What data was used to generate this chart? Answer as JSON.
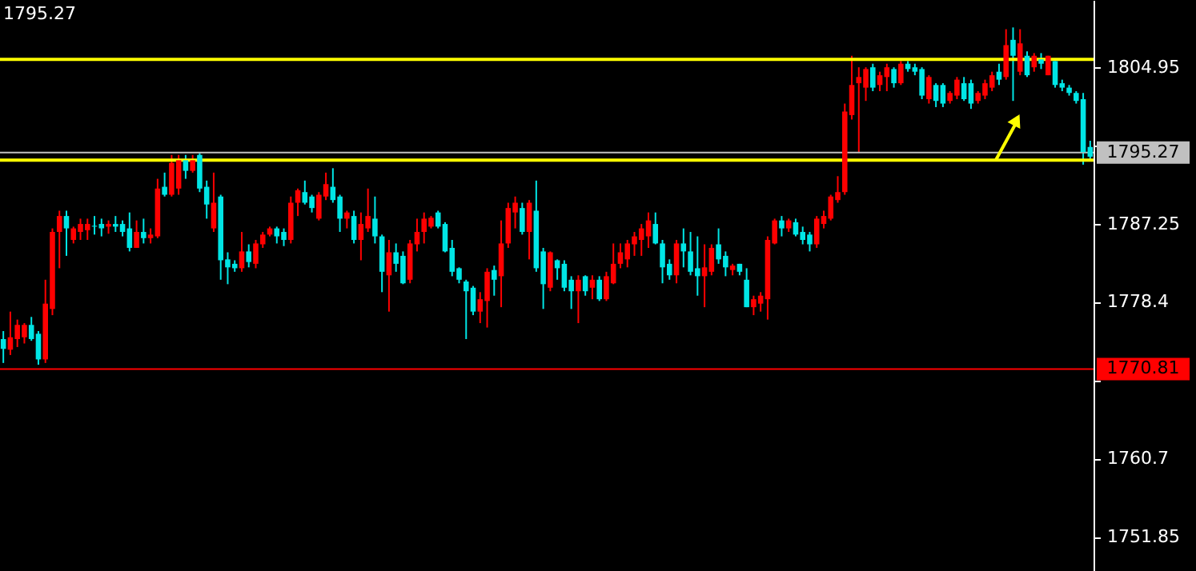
{
  "chart_data": {
    "type": "candlestick",
    "title": "1795.27",
    "categories": [
      null,
      null,
      null,
      null,
      null,
      null,
      null,
      null,
      null,
      null,
      null,
      null,
      null,
      null,
      null,
      null,
      null,
      null,
      null,
      null,
      null,
      null,
      null,
      null,
      null,
      null,
      null,
      null,
      null,
      null,
      null,
      null,
      null,
      null,
      null,
      null,
      null,
      null,
      null,
      null,
      null,
      null,
      null,
      null,
      null,
      null,
      null,
      null,
      null,
      null,
      null,
      null,
      null,
      null,
      null,
      null,
      null,
      null,
      null,
      null,
      null,
      null,
      null,
      null,
      null,
      null,
      null,
      null,
      null,
      null,
      null,
      null,
      null,
      null,
      null,
      null,
      null,
      null,
      null,
      null,
      null,
      null,
      null,
      null,
      null,
      null,
      null,
      null,
      null,
      null,
      null,
      null,
      null,
      null,
      null,
      null,
      null,
      null,
      null,
      null,
      null,
      null,
      null,
      null,
      null,
      null,
      null,
      null,
      null,
      null,
      null,
      null,
      null,
      null,
      null,
      null,
      null,
      null,
      null,
      null,
      null,
      null,
      null,
      null,
      null,
      null,
      null,
      null,
      null,
      null,
      null,
      null,
      null,
      null,
      null,
      null,
      null,
      null,
      null,
      null,
      null,
      null,
      null,
      null,
      null,
      null,
      null,
      null,
      null,
      null,
      null,
      null,
      null,
      null,
      null,
      null
    ],
    "ohlc": [
      [
        1774.2,
        1775.1,
        1771.5,
        1773.1
      ],
      [
        1773.0,
        1777.3,
        1772.4,
        1774.4
      ],
      [
        1774.2,
        1776.4,
        1773.3,
        1775.8
      ],
      [
        1774.4,
        1776.0,
        1773.7,
        1775.8
      ],
      [
        1775.8,
        1776.7,
        1774.0,
        1774.2
      ],
      [
        1774.8,
        1775.1,
        1771.3,
        1771.9
      ],
      [
        1771.9,
        1780.9,
        1771.5,
        1778.2
      ],
      [
        1777.6,
        1786.7,
        1776.9,
        1786.3
      ],
      [
        1786.3,
        1788.7,
        1782.2,
        1788.1
      ],
      [
        1788.1,
        1788.7,
        1783.6,
        1786.7
      ],
      [
        1785.4,
        1786.9,
        1785.0,
        1786.7
      ],
      [
        1786.3,
        1787.8,
        1785.4,
        1787.2
      ],
      [
        1786.5,
        1787.8,
        1785.4,
        1787.2
      ],
      [
        1787.0,
        1788.1,
        1786.0,
        1786.9
      ],
      [
        1787.2,
        1787.8,
        1785.8,
        1786.7
      ],
      [
        1786.9,
        1787.6,
        1786.1,
        1787.2
      ],
      [
        1787.2,
        1788.1,
        1786.3,
        1786.9
      ],
      [
        1787.2,
        1787.6,
        1785.8,
        1786.3
      ],
      [
        1786.7,
        1788.5,
        1784.1,
        1784.5
      ],
      [
        1784.5,
        1787.6,
        1784.5,
        1786.3
      ],
      [
        1786.3,
        1787.8,
        1785.0,
        1785.6
      ],
      [
        1785.6,
        1786.7,
        1785.0,
        1786.0
      ],
      [
        1785.8,
        1792.3,
        1785.6,
        1791.2
      ],
      [
        1791.4,
        1793.0,
        1790.3,
        1790.5
      ],
      [
        1790.5,
        1795.0,
        1790.3,
        1794.1
      ],
      [
        1791.2,
        1795.0,
        1790.5,
        1794.4
      ],
      [
        1794.4,
        1795.0,
        1792.3,
        1793.2
      ],
      [
        1793.2,
        1795.0,
        1793.0,
        1794.4
      ],
      [
        1795.0,
        1795.2,
        1790.8,
        1791.2
      ],
      [
        1791.4,
        1792.1,
        1787.8,
        1789.4
      ],
      [
        1786.7,
        1793.0,
        1786.3,
        1789.6
      ],
      [
        1790.3,
        1790.5,
        1780.9,
        1783.1
      ],
      [
        1783.2,
        1784.0,
        1780.4,
        1782.3
      ],
      [
        1782.7,
        1783.1,
        1781.8,
        1782.2
      ],
      [
        1782.2,
        1786.3,
        1781.8,
        1784.1
      ],
      [
        1784.1,
        1784.9,
        1782.3,
        1782.9
      ],
      [
        1782.7,
        1785.4,
        1782.2,
        1785.0
      ],
      [
        1784.9,
        1786.3,
        1784.5,
        1786.0
      ],
      [
        1786.0,
        1786.9,
        1785.8,
        1786.7
      ],
      [
        1786.7,
        1786.9,
        1785.0,
        1785.8
      ],
      [
        1786.3,
        1786.7,
        1784.7,
        1785.4
      ],
      [
        1785.4,
        1790.3,
        1785.0,
        1789.6
      ],
      [
        1789.6,
        1791.2,
        1788.1,
        1791.0
      ],
      [
        1790.8,
        1792.1,
        1789.4,
        1789.6
      ],
      [
        1790.3,
        1790.5,
        1788.5,
        1789.0
      ],
      [
        1787.8,
        1790.8,
        1787.6,
        1790.5
      ],
      [
        1790.3,
        1793.0,
        1789.9,
        1791.7
      ],
      [
        1791.4,
        1793.5,
        1789.6,
        1789.9
      ],
      [
        1790.3,
        1790.5,
        1786.3,
        1787.8
      ],
      [
        1787.8,
        1788.7,
        1786.7,
        1788.5
      ],
      [
        1788.1,
        1788.7,
        1785.0,
        1785.4
      ],
      [
        1785.4,
        1788.5,
        1783.1,
        1787.2
      ],
      [
        1786.7,
        1791.2,
        1786.3,
        1788.1
      ],
      [
        1787.8,
        1790.3,
        1785.0,
        1785.8
      ],
      [
        1785.8,
        1786.0,
        1779.5,
        1781.8
      ],
      [
        1781.4,
        1785.4,
        1777.3,
        1784.0
      ],
      [
        1784.0,
        1785.0,
        1781.8,
        1782.7
      ],
      [
        1783.6,
        1784.1,
        1780.4,
        1780.5
      ],
      [
        1780.9,
        1785.4,
        1780.5,
        1785.0
      ],
      [
        1784.9,
        1787.8,
        1784.1,
        1786.3
      ],
      [
        1786.3,
        1788.5,
        1785.0,
        1787.8
      ],
      [
        1786.9,
        1788.1,
        1786.7,
        1787.9
      ],
      [
        1788.5,
        1788.7,
        1786.7,
        1786.9
      ],
      [
        1787.2,
        1787.4,
        1784.0,
        1784.1
      ],
      [
        1784.5,
        1785.4,
        1781.3,
        1781.8
      ],
      [
        1782.2,
        1782.3,
        1780.5,
        1780.9
      ],
      [
        1780.7,
        1780.9,
        1774.2,
        1779.6
      ],
      [
        1780.0,
        1780.2,
        1776.9,
        1777.3
      ],
      [
        1777.3,
        1779.5,
        1776.0,
        1778.7
      ],
      [
        1778.5,
        1782.2,
        1775.5,
        1781.8
      ],
      [
        1782.0,
        1782.5,
        1779.1,
        1780.9
      ],
      [
        1781.3,
        1787.6,
        1777.8,
        1785.0
      ],
      [
        1785.0,
        1789.6,
        1784.5,
        1789.0
      ],
      [
        1788.5,
        1790.3,
        1786.7,
        1789.6
      ],
      [
        1789.0,
        1789.6,
        1786.0,
        1786.3
      ],
      [
        1786.3,
        1789.9,
        1783.2,
        1789.6
      ],
      [
        1788.7,
        1792.1,
        1781.8,
        1782.2
      ],
      [
        1784.1,
        1784.5,
        1777.6,
        1780.4
      ],
      [
        1780.0,
        1784.1,
        1779.6,
        1784.0
      ],
      [
        1783.1,
        1783.2,
        1780.9,
        1782.2
      ],
      [
        1782.7,
        1783.1,
        1779.6,
        1780.0
      ],
      [
        1780.9,
        1781.3,
        1777.6,
        1779.6
      ],
      [
        1779.6,
        1781.4,
        1776.0,
        1780.9
      ],
      [
        1781.3,
        1781.4,
        1779.1,
        1779.6
      ],
      [
        1780.0,
        1781.4,
        1778.7,
        1780.9
      ],
      [
        1780.9,
        1781.3,
        1778.5,
        1778.7
      ],
      [
        1778.7,
        1781.8,
        1778.5,
        1781.3
      ],
      [
        1780.5,
        1785.0,
        1780.4,
        1782.7
      ],
      [
        1782.7,
        1785.0,
        1782.2,
        1784.0
      ],
      [
        1783.2,
        1785.4,
        1782.3,
        1785.0
      ],
      [
        1784.9,
        1786.3,
        1783.6,
        1785.8
      ],
      [
        1785.4,
        1787.2,
        1783.6,
        1786.7
      ],
      [
        1785.8,
        1788.5,
        1784.5,
        1787.6
      ],
      [
        1787.2,
        1788.5,
        1784.9,
        1785.0
      ],
      [
        1785.0,
        1785.4,
        1780.5,
        1782.3
      ],
      [
        1782.7,
        1783.2,
        1780.9,
        1781.4
      ],
      [
        1781.4,
        1785.4,
        1780.5,
        1785.0
      ],
      [
        1785.0,
        1786.7,
        1782.3,
        1784.1
      ],
      [
        1784.1,
        1786.3,
        1781.4,
        1781.8
      ],
      [
        1782.2,
        1785.8,
        1779.1,
        1781.3
      ],
      [
        1781.3,
        1784.9,
        1777.8,
        1782.3
      ],
      [
        1781.8,
        1784.9,
        1781.4,
        1784.5
      ],
      [
        1784.9,
        1786.7,
        1782.7,
        1783.2
      ],
      [
        1783.6,
        1784.1,
        1781.3,
        1782.3
      ],
      [
        1782.0,
        1782.7,
        1781.4,
        1782.5
      ],
      [
        1782.7,
        1782.7,
        1781.4,
        1781.8
      ],
      [
        1780.9,
        1782.2,
        1777.8,
        1777.8
      ],
      [
        1777.8,
        1779.1,
        1776.9,
        1778.7
      ],
      [
        1778.2,
        1779.5,
        1777.3,
        1779.1
      ],
      [
        1778.7,
        1785.8,
        1776.4,
        1785.4
      ],
      [
        1785.0,
        1787.8,
        1784.9,
        1787.6
      ],
      [
        1787.6,
        1788.1,
        1785.8,
        1786.7
      ],
      [
        1786.7,
        1787.8,
        1786.3,
        1787.6
      ],
      [
        1787.4,
        1787.8,
        1785.8,
        1786.0
      ],
      [
        1786.3,
        1786.9,
        1784.9,
        1785.4
      ],
      [
        1786.0,
        1786.3,
        1784.1,
        1784.9
      ],
      [
        1784.9,
        1788.1,
        1784.5,
        1787.8
      ],
      [
        1787.2,
        1788.7,
        1786.7,
        1788.1
      ],
      [
        1787.8,
        1790.5,
        1787.6,
        1790.3
      ],
      [
        1789.9,
        1792.6,
        1789.6,
        1790.8
      ],
      [
        1790.8,
        1800.8,
        1790.5,
        1799.9
      ],
      [
        1799.5,
        1806.2,
        1799.0,
        1802.9
      ],
      [
        1803.1,
        1804.9,
        1795.3,
        1803.8
      ],
      [
        1802.6,
        1804.9,
        1801.1,
        1804.7
      ],
      [
        1804.9,
        1805.3,
        1802.2,
        1802.6
      ],
      [
        1802.9,
        1804.4,
        1802.2,
        1804.0
      ],
      [
        1803.8,
        1805.3,
        1802.2,
        1804.9
      ],
      [
        1804.7,
        1804.9,
        1802.6,
        1803.1
      ],
      [
        1803.1,
        1805.6,
        1802.9,
        1805.3
      ],
      [
        1805.3,
        1805.6,
        1804.4,
        1804.7
      ],
      [
        1804.9,
        1805.3,
        1804.0,
        1804.4
      ],
      [
        1804.7,
        1804.9,
        1801.3,
        1801.7
      ],
      [
        1801.3,
        1804.0,
        1800.8,
        1803.8
      ],
      [
        1802.9,
        1803.1,
        1800.4,
        1801.1
      ],
      [
        1802.9,
        1803.1,
        1800.4,
        1800.8
      ],
      [
        1801.1,
        1802.2,
        1800.8,
        1802.0
      ],
      [
        1801.7,
        1803.8,
        1801.3,
        1803.5
      ],
      [
        1803.1,
        1803.8,
        1801.1,
        1801.3
      ],
      [
        1803.1,
        1803.5,
        1800.2,
        1800.8
      ],
      [
        1801.1,
        1802.2,
        1800.8,
        1802.0
      ],
      [
        1801.7,
        1803.5,
        1801.3,
        1803.1
      ],
      [
        1802.6,
        1804.4,
        1802.2,
        1804.0
      ],
      [
        1804.4,
        1805.3,
        1802.9,
        1803.5
      ],
      [
        1803.8,
        1809.2,
        1803.5,
        1807.4
      ],
      [
        1808.0,
        1809.4,
        1801.1,
        1806.2
      ],
      [
        1804.4,
        1809.2,
        1804.0,
        1807.6
      ],
      [
        1806.2,
        1806.7,
        1803.8,
        1804.0
      ],
      [
        1804.9,
        1806.5,
        1804.4,
        1806.2
      ],
      [
        1805.8,
        1806.5,
        1804.7,
        1805.3
      ],
      [
        1804.0,
        1806.2,
        1804.0,
        1806.2
      ],
      [
        1805.6,
        1805.6,
        1802.6,
        1802.9
      ],
      [
        1803.1,
        1803.5,
        1802.2,
        1802.6
      ],
      [
        1802.6,
        1802.9,
        1801.7,
        1802.0
      ],
      [
        1802.0,
        1802.2,
        1800.8,
        1801.1
      ],
      [
        1801.3,
        1802.0,
        1793.9,
        1795.3
      ],
      [
        1795.9,
        1796.6,
        1794.4,
        1794.8
      ]
    ],
    "colors": [
      "#00e5e5",
      "#ff0000",
      "#ff0000",
      "#ff0000",
      "#00e5e5",
      "#00e5e5",
      "#ff0000",
      "#ff0000",
      "#ff0000",
      "#00e5e5",
      "#ff0000",
      "#ff0000",
      "#ff0000",
      "#00e5e5",
      "#00e5e5",
      "#ff0000",
      "#00e5e5",
      "#00e5e5",
      "#00e5e5",
      "#ff0000",
      "#00e5e5",
      "#ff0000",
      "#ff0000",
      "#00e5e5",
      "#ff0000",
      "#ff0000",
      "#00e5e5",
      "#ff0000",
      "#00e5e5",
      "#00e5e5",
      "#ff0000",
      "#00e5e5",
      "#00e5e5",
      "#00e5e5",
      "#ff0000",
      "#00e5e5",
      "#ff0000",
      "#ff0000",
      "#ff0000",
      "#00e5e5",
      "#00e5e5",
      "#ff0000",
      "#ff0000",
      "#00e5e5",
      "#00e5e5",
      "#ff0000",
      "#ff0000",
      "#00e5e5",
      "#00e5e5",
      "#ff0000",
      "#00e5e5",
      "#ff0000",
      "#ff0000",
      "#00e5e5",
      "#00e5e5",
      "#ff0000",
      "#00e5e5",
      "#00e5e5",
      "#ff0000",
      "#ff0000",
      "#ff0000",
      "#ff0000",
      "#00e5e5",
      "#00e5e5",
      "#00e5e5",
      "#00e5e5",
      "#00e5e5",
      "#00e5e5",
      "#ff0000",
      "#ff0000",
      "#00e5e5",
      "#ff0000",
      "#ff0000",
      "#ff0000",
      "#00e5e5",
      "#ff0000",
      "#00e5e5",
      "#00e5e5",
      "#ff0000",
      "#00e5e5",
      "#00e5e5",
      "#00e5e5",
      "#ff0000",
      "#00e5e5",
      "#ff0000",
      "#00e5e5",
      "#ff0000",
      "#ff0000",
      "#ff0000",
      "#ff0000",
      "#ff0000",
      "#ff0000",
      "#ff0000",
      "#00e5e5",
      "#00e5e5",
      "#00e5e5",
      "#ff0000",
      "#00e5e5",
      "#00e5e5",
      "#00e5e5",
      "#ff0000",
      "#ff0000",
      "#00e5e5",
      "#00e5e5",
      "#ff0000",
      "#00e5e5",
      "#00e5e5",
      "#ff0000",
      "#ff0000",
      "#ff0000",
      "#ff0000",
      "#00e5e5",
      "#ff0000",
      "#00e5e5",
      "#00e5e5",
      "#00e5e5",
      "#ff0000",
      "#ff0000",
      "#ff0000",
      "#ff0000",
      "#ff0000",
      "#ff0000",
      "#ff0000",
      "#ff0000",
      "#00e5e5",
      "#ff0000",
      "#ff0000",
      "#00e5e5",
      "#ff0000",
      "#00e5e5",
      "#00e5e5",
      "#00e5e5",
      "#ff0000",
      "#00e5e5",
      "#00e5e5",
      "#ff0000",
      "#ff0000",
      "#00e5e5",
      "#00e5e5",
      "#ff0000",
      "#ff0000",
      "#ff0000",
      "#00e5e5",
      "#ff0000",
      "#00e5e5",
      "#ff0000",
      "#00e5e5",
      "#ff0000",
      "#00e5e5",
      "#ff0000",
      "#00e5e5",
      "#00e5e5",
      "#00e5e5",
      "#00e5e5",
      "#00e5e5",
      "#00e5e5"
    ],
    "ylim": [
      1748.0,
      1812.5
    ],
    "yticks": [
      1804.95,
      {
        "value": 1796.1,
        "label": null
      },
      1787.25,
      1778.4,
      {
        "value": 1769.55,
        "label": null
      },
      1760.7,
      1751.85
    ],
    "tick_labels": "y",
    "ref_lines": [
      {
        "axis": "y",
        "value": 1794.4,
        "label": null,
        "color": "#ffff00"
      },
      {
        "axis": "y",
        "value": 1805.8,
        "label": null,
        "color": "#ffff00"
      },
      {
        "axis": "y",
        "value": 1795.27,
        "label": "1795.27",
        "color": "#c0c0c0"
      },
      {
        "axis": "y",
        "value": 1770.81,
        "label": "1770.81",
        "color": "#ff0000"
      }
    ]
  }
}
